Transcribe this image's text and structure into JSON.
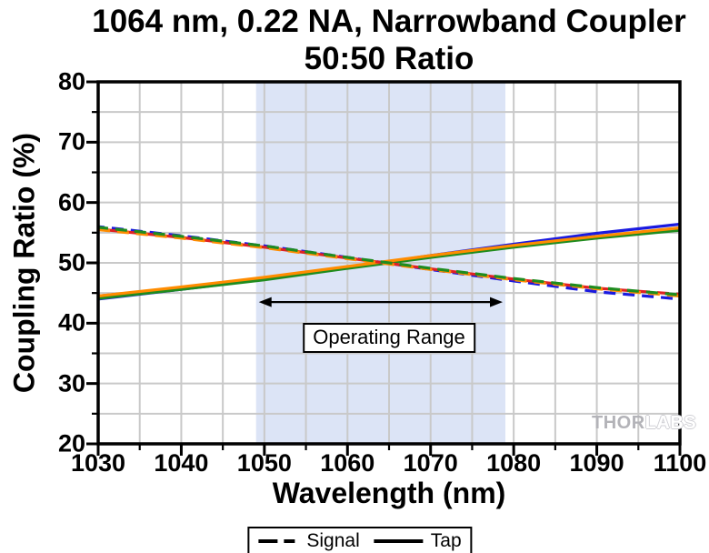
{
  "title": {
    "line1": "1064 nm, 0.22 NA, Narrowband Coupler",
    "line2": "50:50 Ratio"
  },
  "axes": {
    "x": {
      "label": "Wavelength (nm)",
      "min": 1030,
      "max": 1100,
      "major_ticks": [
        1030,
        1040,
        1050,
        1060,
        1070,
        1080,
        1090,
        1100
      ],
      "minor_step": 5
    },
    "y": {
      "label": "Coupling Ratio (%)",
      "min": 20,
      "max": 80,
      "major_ticks": [
        20,
        30,
        40,
        50,
        60,
        70,
        80
      ],
      "minor_step": 5
    }
  },
  "annotations": {
    "operating_range_label": "Operating Range"
  },
  "legend": {
    "signal_label": "Signal",
    "tap_label": "Tap"
  },
  "watermark": {
    "part1": "THOR",
    "part2": "LABS"
  },
  "colors": {
    "grid": "#c9c9c9",
    "axis": "#000000",
    "shading": "#dce4f6",
    "blue": "#1a1ae0",
    "red": "#e02222",
    "green": "#1f8c1f",
    "orange": "#ff8c00"
  },
  "chart_data": {
    "type": "line",
    "title": "1064 nm, 0.22 NA, Narrowband Coupler - 50:50 Ratio",
    "xlabel": "Wavelength (nm)",
    "ylabel": "Coupling Ratio (%)",
    "xlim": [
      1030,
      1100
    ],
    "ylim": [
      20,
      80
    ],
    "grid": "on",
    "grid_step": 5,
    "legend_position": "bottom-center",
    "x": [
      1030,
      1040,
      1050,
      1060,
      1070,
      1080,
      1090,
      1100
    ],
    "series": [
      {
        "name": "Tap blue",
        "group": "Tap",
        "style": "solid",
        "color": "#1a1ae0",
        "dashoffset": 0,
        "values": [
          44.0,
          45.6,
          47.3,
          49.2,
          51.2,
          53.1,
          54.9,
          56.4
        ]
      },
      {
        "name": "Tap red",
        "group": "Tap",
        "style": "solid",
        "color": "#e02222",
        "dashoffset": 0,
        "values": [
          44.5,
          45.9,
          47.5,
          49.3,
          51.1,
          52.8,
          54.3,
          55.5
        ]
      },
      {
        "name": "Tap green",
        "group": "Tap",
        "style": "solid",
        "color": "#1f8c1f",
        "dashoffset": 0,
        "values": [
          44.1,
          45.6,
          47.2,
          49.1,
          50.9,
          52.6,
          54.1,
          55.4
        ]
      },
      {
        "name": "Tap orange",
        "group": "Tap",
        "style": "solid",
        "color": "#ff8c00",
        "dashoffset": 0,
        "values": [
          44.5,
          46.0,
          47.6,
          49.4,
          51.2,
          52.9,
          54.4,
          55.8
        ]
      },
      {
        "name": "Signal blue",
        "group": "Signal",
        "style": "dashed",
        "color": "#1a1ae0",
        "dashoffset": 6,
        "values": [
          56.0,
          54.5,
          52.8,
          50.9,
          48.9,
          47.0,
          45.2,
          44.0
        ]
      },
      {
        "name": "Signal red",
        "group": "Signal",
        "style": "dashed",
        "color": "#e02222",
        "dashoffset": 11,
        "values": [
          55.6,
          54.2,
          52.6,
          50.8,
          49.0,
          47.3,
          45.8,
          44.8
        ]
      },
      {
        "name": "Signal orange",
        "group": "Signal",
        "style": "dashed",
        "color": "#ff8c00",
        "dashoffset": 0,
        "values": [
          55.5,
          54.1,
          52.5,
          50.7,
          48.9,
          47.2,
          45.7,
          44.5
        ]
      },
      {
        "name": "Signal green",
        "group": "Signal",
        "style": "dashed",
        "color": "#1f8c1f",
        "dashoffset": 2,
        "values": [
          55.9,
          54.4,
          52.8,
          50.9,
          49.1,
          47.4,
          45.9,
          44.7
        ]
      }
    ],
    "operating_range": {
      "label": "Operating Range",
      "start_nm": 1049,
      "end_nm": 1079,
      "fill": "#dce4f6",
      "arrow_y_value": 43.5
    }
  }
}
